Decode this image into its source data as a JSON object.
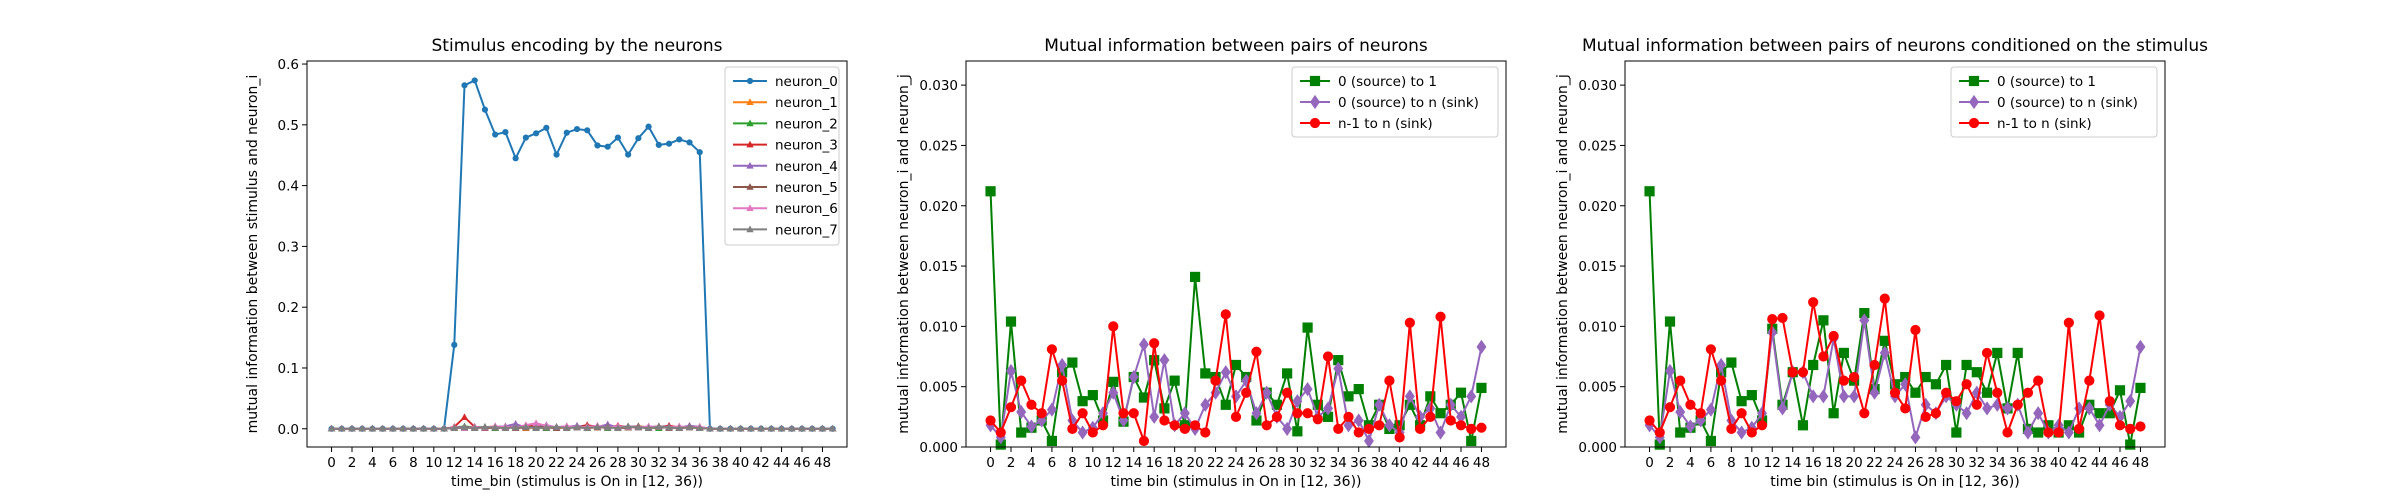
{
  "chart_data": [
    {
      "type": "line",
      "title": "Stimulus encoding by the neurons",
      "xlabel": "time_bin (stimulus is On in [12, 36))",
      "ylabel": "mutual information between stimulus and neuron_i",
      "xlim": [
        -2.4,
        50.4
      ],
      "ylim": [
        -0.03,
        0.605
      ],
      "xticks": [
        0,
        2,
        4,
        6,
        8,
        10,
        12,
        14,
        16,
        18,
        20,
        22,
        24,
        26,
        28,
        30,
        32,
        34,
        36,
        38,
        40,
        42,
        44,
        46,
        48
      ],
      "yticks": [
        0.0,
        0.1,
        0.2,
        0.3,
        0.4,
        0.5,
        0.6
      ],
      "ytick_labels": [
        "0.0",
        "0.1",
        "0.2",
        "0.3",
        "0.4",
        "0.5",
        "0.6"
      ],
      "legend_position": "top-right",
      "grid": false,
      "series": [
        {
          "name": "neuron_0",
          "color": "#1f77b4",
          "marker": "circle",
          "values": [
            0,
            0,
            0,
            0,
            0,
            0,
            0,
            0,
            0,
            0,
            0,
            0,
            0.138,
            0.565,
            0.573,
            0.525,
            0.484,
            0.488,
            0.445,
            0.479,
            0.486,
            0.495,
            0.451,
            0.487,
            0.493,
            0.491,
            0.466,
            0.464,
            0.479,
            0.451,
            0.478,
            0.497,
            0.467,
            0.469,
            0.476,
            0.471,
            0.455,
            0,
            0,
            0,
            0,
            0,
            0,
            0,
            0,
            0,
            0,
            0,
            0,
            0
          ]
        },
        {
          "name": "neuron_1",
          "color": "#ff7f0e",
          "marker": "triangle",
          "values": [
            0,
            0,
            0,
            0,
            0,
            0,
            0,
            0,
            0,
            0,
            0,
            0,
            0.001,
            0.002,
            0.001,
            0.002,
            0.001,
            0.002,
            0.003,
            0.001,
            0.002,
            0.003,
            0.001,
            0.002,
            0.003,
            0.001,
            0.002,
            0.004,
            0.001,
            0.002,
            0.003,
            0.001,
            0.002,
            0.003,
            0.001,
            0.002,
            0.001,
            0,
            0,
            0,
            0,
            0,
            0,
            0,
            0,
            0,
            0,
            0,
            0,
            0
          ]
        },
        {
          "name": "neuron_2",
          "color": "#2ca02c",
          "marker": "triangle",
          "values": [
            0,
            0,
            0,
            0,
            0,
            0,
            0,
            0,
            0,
            0,
            0,
            0,
            0.002,
            0.004,
            0.002,
            0.003,
            0.001,
            0.003,
            0.002,
            0.004,
            0.002,
            0.001,
            0.003,
            0.002,
            0.004,
            0.002,
            0.003,
            0.001,
            0.003,
            0.002,
            0.004,
            0.002,
            0.001,
            0.003,
            0.002,
            0.003,
            0.002,
            0,
            0,
            0,
            0,
            0,
            0,
            0,
            0,
            0,
            0,
            0,
            0,
            0
          ]
        },
        {
          "name": "neuron_3",
          "color": "#d62728",
          "marker": "triangle",
          "values": [
            0,
            0,
            0,
            0,
            0,
            0,
            0,
            0,
            0,
            0,
            0,
            0,
            0.003,
            0.019,
            0.003,
            0.002,
            0.004,
            0.003,
            0.002,
            0.004,
            0.005,
            0.003,
            0.002,
            0.004,
            0.003,
            0.006,
            0.003,
            0.002,
            0.005,
            0.003,
            0.004,
            0.002,
            0.003,
            0.005,
            0.002,
            0.004,
            0.003,
            0,
            0,
            0,
            0,
            0,
            0,
            0,
            0,
            0,
            0,
            0,
            0,
            0
          ]
        },
        {
          "name": "neuron_4",
          "color": "#9467bd",
          "marker": "triangle",
          "values": [
            0,
            0,
            0,
            0,
            0,
            0,
            0,
            0,
            0,
            0,
            0,
            0,
            0.002,
            0.003,
            0.001,
            0.002,
            0.003,
            0.004,
            0.008,
            0.002,
            0.003,
            0.006,
            0.002,
            0.003,
            0.005,
            0.002,
            0.003,
            0.007,
            0.002,
            0.004,
            0.003,
            0.002,
            0.004,
            0.003,
            0.002,
            0.005,
            0.003,
            0,
            0,
            0,
            0,
            0,
            0,
            0,
            0,
            0,
            0,
            0,
            0,
            0
          ]
        },
        {
          "name": "neuron_5",
          "color": "#8c564b",
          "marker": "triangle",
          "values": [
            0,
            0,
            0,
            0,
            0,
            0,
            0,
            0,
            0,
            0,
            0,
            0,
            0.001,
            0.002,
            0.003,
            0.001,
            0.002,
            0.003,
            0.001,
            0.002,
            0.004,
            0.002,
            0.001,
            0.003,
            0.002,
            0.004,
            0.002,
            0.003,
            0.001,
            0.002,
            0.003,
            0.002,
            0.004,
            0.001,
            0.002,
            0.003,
            0.002,
            0,
            0,
            0,
            0,
            0,
            0,
            0,
            0,
            0,
            0,
            0,
            0,
            0
          ]
        },
        {
          "name": "neuron_6",
          "color": "#e377c2",
          "marker": "triangle",
          "values": [
            0,
            0,
            0,
            0,
            0,
            0,
            0,
            0,
            0,
            0,
            0,
            0,
            0.002,
            0.001,
            0.003,
            0.002,
            0.004,
            0.003,
            0.002,
            0.006,
            0.009,
            0.005,
            0.003,
            0.004,
            0.002,
            0.003,
            0.005,
            0.002,
            0.004,
            0.003,
            0.002,
            0.004,
            0.003,
            0.002,
            0.004,
            0.002,
            0.003,
            0,
            0,
            0,
            0,
            0,
            0,
            0,
            0,
            0,
            0,
            0,
            0,
            0
          ]
        },
        {
          "name": "neuron_7",
          "color": "#7f7f7f",
          "marker": "triangle",
          "values": [
            0,
            0,
            0,
            0,
            0,
            0,
            0,
            0,
            0,
            0,
            0,
            0,
            0.001,
            0.002,
            0.001,
            0.003,
            0.002,
            0.001,
            0.002,
            0.003,
            0.001,
            0.002,
            0.003,
            0.001,
            0.002,
            0.001,
            0.003,
            0.002,
            0.001,
            0.004,
            0.002,
            0.001,
            0.003,
            0.002,
            0.001,
            0.002,
            0.001,
            0,
            0,
            0,
            0,
            0,
            0,
            0,
            0,
            0,
            0,
            0,
            0,
            0
          ]
        }
      ]
    },
    {
      "type": "line",
      "title": "Mutual information between pairs of neurons",
      "xlabel": "time bin (stimulus in On in [12, 36))",
      "ylabel": "mutual information between neuron_i and neuron_j",
      "xlim": [
        -2.4,
        50.4
      ],
      "ylim": [
        0,
        0.032
      ],
      "xticks": [
        0,
        2,
        4,
        6,
        8,
        10,
        12,
        14,
        16,
        18,
        20,
        22,
        24,
        26,
        28,
        30,
        32,
        34,
        36,
        38,
        40,
        42,
        44,
        46,
        48
      ],
      "yticks": [
        0.0,
        0.005,
        0.01,
        0.015,
        0.02,
        0.025,
        0.03
      ],
      "ytick_labels": [
        "0.000",
        "0.005",
        "0.010",
        "0.015",
        "0.020",
        "0.025",
        "0.030"
      ],
      "legend_position": "top-right",
      "grid": false,
      "series": [
        {
          "name": "0 (source) to 1",
          "color": "#008000",
          "marker": "square",
          "values": [
            0.0212,
            0.0002,
            0.0104,
            0.0012,
            0.0016,
            0.0022,
            0.0005,
            0.0062,
            0.007,
            0.0038,
            0.0043,
            0.0022,
            0.0054,
            0.0021,
            0.0058,
            0.0041,
            0.0072,
            0.0032,
            0.0055,
            0.0018,
            0.0141,
            0.0061,
            0.0058,
            0.0035,
            0.0068,
            0.0058,
            0.0022,
            0.0045,
            0.0035,
            0.0061,
            0.0013,
            0.0099,
            0.0035,
            0.0025,
            0.0072,
            0.0042,
            0.0048,
            0.0018,
            0.0035,
            0.0015,
            0.0018,
            0.0035,
            0.0018,
            0.0042,
            0.0028,
            0.0035,
            0.0045,
            0.0005,
            0.0049
          ]
        },
        {
          "name": "0 (source) to n (sink)",
          "color": "#9467bd",
          "marker": "diamond",
          "values": [
            0.0018,
            0.0008,
            0.0063,
            0.0029,
            0.0017,
            0.0022,
            0.0031,
            0.0068,
            0.0022,
            0.0012,
            0.0016,
            0.0028,
            0.0045,
            0.0022,
            0.0058,
            0.0085,
            0.0025,
            0.0072,
            0.0018,
            0.0028,
            0.0015,
            0.0035,
            0.0045,
            0.0062,
            0.0042,
            0.0055,
            0.0028,
            0.0045,
            0.0025,
            0.0015,
            0.0038,
            0.0048,
            0.0025,
            0.0032,
            0.0065,
            0.0018,
            0.0022,
            0.0005,
            0.0035,
            0.0018,
            0.0012,
            0.0042,
            0.0025,
            0.0032,
            0.0012,
            0.0035,
            0.0025,
            0.0042,
            0.0083
          ]
        },
        {
          "name": "n-1 to n (sink)",
          "color": "#ff0000",
          "marker": "circle",
          "values": [
            0.0022,
            0.0012,
            0.0033,
            0.0055,
            0.0035,
            0.0028,
            0.0081,
            0.0055,
            0.0015,
            0.0028,
            0.0012,
            0.0018,
            0.01,
            0.0028,
            0.0028,
            0.0005,
            0.0086,
            0.0022,
            0.0018,
            0.0015,
            0.0018,
            0.0012,
            0.0055,
            0.011,
            0.0025,
            0.0045,
            0.0079,
            0.0018,
            0.0025,
            0.0045,
            0.0028,
            0.0028,
            0.0023,
            0.0075,
            0.0015,
            0.0025,
            0.0012,
            0.0015,
            0.0018,
            0.0055,
            0.0008,
            0.0103,
            0.0015,
            0.0025,
            0.0108,
            0.0022,
            0.0018,
            0.0015,
            0.0016
          ]
        }
      ]
    },
    {
      "type": "line",
      "title": "Mutual information between pairs of neurons conditioned on the stimulus",
      "xlabel": "time bin (stimulus is On in [12, 36))",
      "ylabel": "mutual information between neuron_i and neuron_j",
      "xlim": [
        -2.4,
        50.4
      ],
      "ylim": [
        0,
        0.032
      ],
      "xticks": [
        0,
        2,
        4,
        6,
        8,
        10,
        12,
        14,
        16,
        18,
        20,
        22,
        24,
        26,
        28,
        30,
        32,
        34,
        36,
        38,
        40,
        42,
        44,
        46,
        48
      ],
      "yticks": [
        0.0,
        0.005,
        0.01,
        0.015,
        0.02,
        0.025,
        0.03
      ],
      "ytick_labels": [
        "0.000",
        "0.005",
        "0.010",
        "0.015",
        "0.020",
        "0.025",
        "0.030"
      ],
      "legend_position": "top-right",
      "grid": false,
      "series": [
        {
          "name": "0 (source) to 1",
          "color": "#008000",
          "marker": "square",
          "values": [
            0.0212,
            0.0002,
            0.0104,
            0.0012,
            0.0016,
            0.0022,
            0.0005,
            0.0062,
            0.007,
            0.0038,
            0.0043,
            0.0022,
            0.0098,
            0.0035,
            0.0062,
            0.0018,
            0.0068,
            0.0105,
            0.0028,
            0.0078,
            0.0055,
            0.0111,
            0.0048,
            0.0088,
            0.0052,
            0.0058,
            0.0045,
            0.0058,
            0.0052,
            0.0068,
            0.0012,
            0.0068,
            0.0062,
            0.0045,
            0.0078,
            0.0032,
            0.0078,
            0.0015,
            0.0012,
            0.0018,
            0.0012,
            0.0018,
            0.0012,
            0.0035,
            0.0028,
            0.0028,
            0.0047,
            0.0002,
            0.0049
          ]
        },
        {
          "name": "0 (source) to n (sink)",
          "color": "#9467bd",
          "marker": "diamond",
          "values": [
            0.0018,
            0.0008,
            0.0063,
            0.0029,
            0.0017,
            0.0022,
            0.0031,
            0.0068,
            0.0022,
            0.0012,
            0.0016,
            0.0028,
            0.0095,
            0.0032,
            0.0062,
            0.0062,
            0.0042,
            0.0042,
            0.009,
            0.0042,
            0.0042,
            0.0105,
            0.0045,
            0.0078,
            0.0042,
            0.0052,
            0.0008,
            0.0035,
            0.0028,
            0.0042,
            0.0035,
            0.0028,
            0.0045,
            0.0032,
            0.0035,
            0.0032,
            0.0035,
            0.0012,
            0.0028,
            0.0012,
            0.0018,
            0.0012,
            0.0032,
            0.0032,
            0.0018,
            0.0035,
            0.0025,
            0.0038,
            0.0083
          ]
        },
        {
          "name": "n-1 to n (sink)",
          "color": "#ff0000",
          "marker": "circle",
          "values": [
            0.0022,
            0.0012,
            0.0033,
            0.0055,
            0.0035,
            0.0028,
            0.0081,
            0.0055,
            0.0015,
            0.0028,
            0.0012,
            0.0018,
            0.0106,
            0.0107,
            0.0062,
            0.0062,
            0.012,
            0.0075,
            0.0092,
            0.0055,
            0.0058,
            0.0028,
            0.0068,
            0.0123,
            0.0045,
            0.0032,
            0.0097,
            0.0025,
            0.0028,
            0.0045,
            0.0038,
            0.0052,
            0.0035,
            0.0078,
            0.0045,
            0.0012,
            0.0035,
            0.0045,
            0.0055,
            0.0012,
            0.0012,
            0.0103,
            0.0015,
            0.0055,
            0.0109,
            0.0038,
            0.0018,
            0.0015,
            0.0017
          ]
        }
      ]
    }
  ]
}
